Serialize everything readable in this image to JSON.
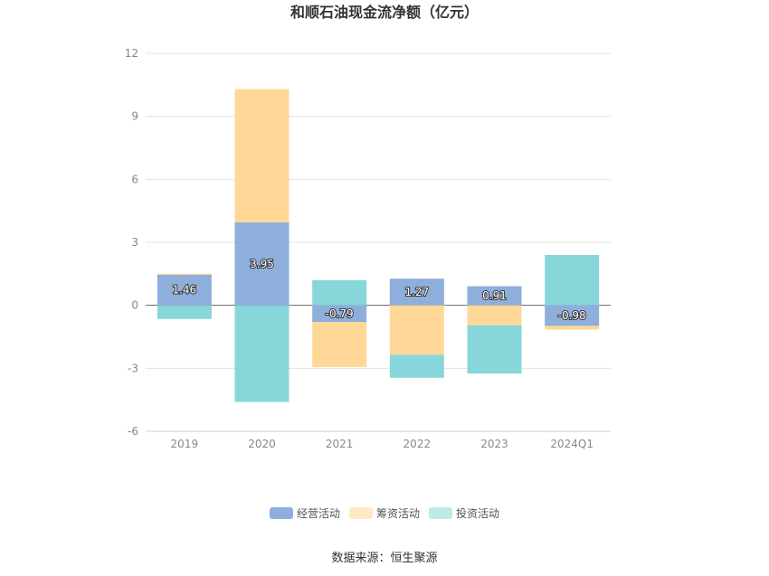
{
  "chart_data": {
    "type": "bar",
    "stacked": true,
    "title": "和顺石油现金流净额（亿元）",
    "categories": [
      "2019",
      "2020",
      "2021",
      "2022",
      "2023",
      "2024Q1"
    ],
    "series": [
      {
        "name": "经营活动",
        "color": "#8eaedb",
        "values": [
          1.46,
          3.95,
          -0.79,
          1.27,
          0.91,
          -0.98
        ]
      },
      {
        "name": "筹资活动",
        "color": "#ffd898",
        "values": [
          0.05,
          6.35,
          -2.15,
          -2.35,
          -0.95,
          -0.18
        ]
      },
      {
        "name": "投资活动",
        "color": "#87d6da",
        "values": [
          -0.65,
          -4.6,
          1.2,
          -1.1,
          -2.3,
          2.4
        ]
      }
    ],
    "data_labels": [
      "1.46",
      "3.95",
      "-0.79",
      "1.27",
      "0.91",
      "-0.98"
    ],
    "yticks": [
      "12",
      "9",
      "6",
      "3",
      "0",
      "-3",
      "-6"
    ],
    "ylim": [
      -6,
      12
    ],
    "grid": true,
    "legend_position": "bottom",
    "legend_swatch_colors": [
      "#8eaedb",
      "#ffe9c2",
      "#c0e9eb"
    ],
    "source": "数据来源：恒生聚源"
  }
}
